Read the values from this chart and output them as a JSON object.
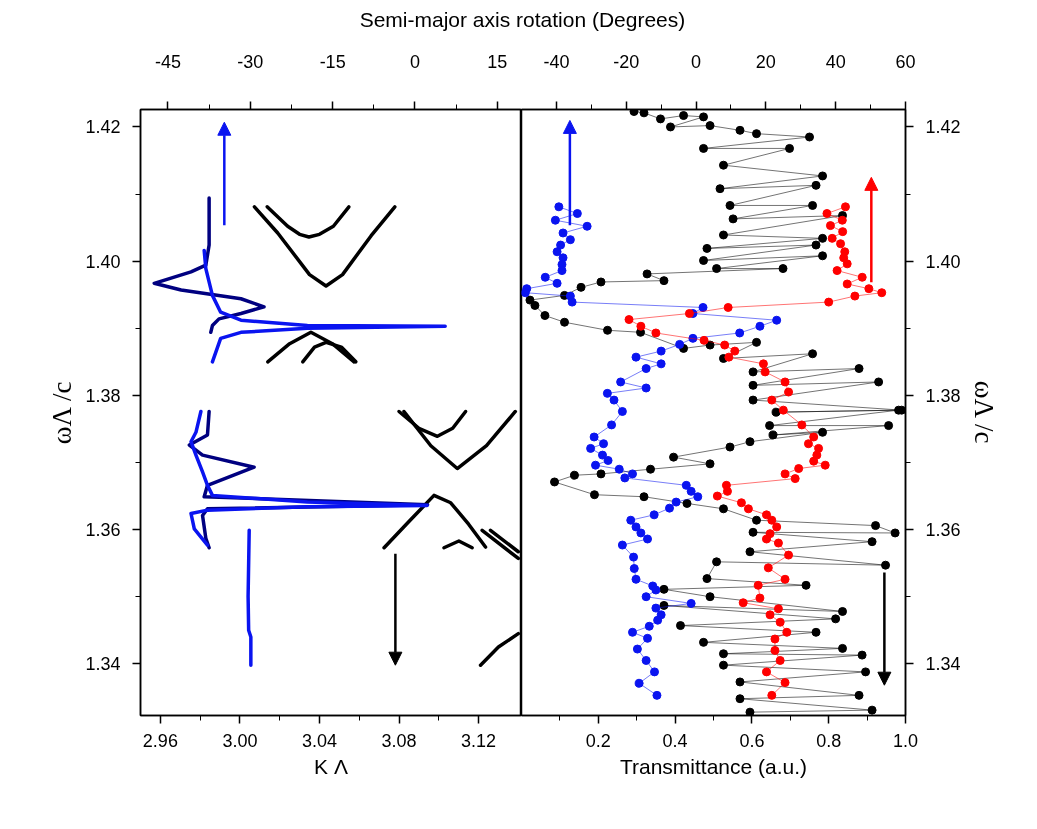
{
  "chart_data": [
    {
      "type": "line",
      "xlabel": "K Λ",
      "ylabel": "ωΛ /c",
      "x2label": "Semi-major axis rotation (Degrees)",
      "xlim": [
        2.95,
        3.1416
      ],
      "xticks": [
        2.96,
        {
          "value": 2.98,
          "label": null
        },
        {
          "value": 3.0,
          "label": "3.00"
        },
        {
          "value": 3.02,
          "label": null
        },
        3.04,
        {
          "value": 3.06,
          "label": null
        },
        3.08,
        {
          "value": 3.1,
          "label": null
        },
        3.12
      ],
      "x2lim": [
        -50,
        19.4
      ],
      "x2ticks": [
        -45,
        {
          "value": -37.5,
          "label": null
        },
        -30,
        {
          "value": -22.5,
          "label": null
        },
        -15,
        {
          "value": -7.5,
          "label": null
        },
        0,
        {
          "value": 7.5,
          "label": null
        },
        15
      ],
      "ylim": [
        1.3323,
        1.4226
      ],
      "yticks": [
        1.34,
        {
          "value": 1.35,
          "label": null
        },
        1.36,
        {
          "value": 1.37,
          "label": null
        },
        1.38,
        {
          "value": 1.39,
          "label": null
        },
        {
          "value": 1.4,
          "label": "1.40"
        },
        {
          "value": 1.41,
          "label": null
        },
        1.42
      ],
      "grid": false,
      "marker": "none",
      "series": [
        {
          "color": "#000000",
          "x": [
            3.0137,
            3.024,
            3.03,
            3.0347,
            3.04,
            3.047,
            3.0548
          ],
          "values": [
            1.4081,
            1.4052,
            1.404,
            1.4036,
            1.404,
            1.4052,
            1.4081
          ]
        },
        {
          "color": "#000000",
          "x": [
            3.0073,
            3.019,
            3.035,
            3.0433,
            3.0516,
            3.066,
            3.0779
          ],
          "values": [
            1.4081,
            1.4042,
            1.398,
            1.3963,
            1.398,
            1.4038,
            1.4081
          ]
        },
        {
          "color": "#000000",
          "x": [
            3.014,
            3.025,
            3.0357,
            3.0465,
            3.0574
          ],
          "values": [
            1.385,
            1.3877,
            1.3894,
            1.3877,
            1.385
          ]
        },
        {
          "color": "#000000",
          "x": [
            3.0316,
            3.0375,
            3.0433,
            3.051,
            3.0583
          ],
          "values": [
            1.385,
            1.3872,
            1.3879,
            1.3872,
            1.385
          ]
        },
        {
          "color": "#000000",
          "x": [
            3.08,
            3.09,
            3.0993,
            3.107,
            3.1135
          ],
          "values": [
            1.3776,
            1.3751,
            1.3739,
            1.3751,
            1.3776
          ]
        },
        {
          "color": "#000000",
          "x": [
            3.0825,
            3.096,
            3.1093,
            3.124,
            3.1385
          ],
          "values": [
            1.3776,
            1.3725,
            1.3691,
            1.3725,
            1.3776
          ]
        },
        {
          "color": "#000000",
          "x": [
            3.0725,
            3.085,
            3.0976,
            3.106,
            3.115,
            3.1235
          ],
          "values": [
            1.3573,
            1.3612,
            1.3651,
            1.364,
            1.3608,
            1.3574
          ]
        },
        {
          "color": "#000000",
          "x": [
            3.1026,
            3.1101,
            3.1168
          ],
          "values": [
            1.3573,
            1.3583,
            1.3573
          ]
        },
        {
          "color": "#000000",
          "x": [
            3.1218,
            3.14
          ],
          "values": [
            1.3599,
            1.3557
          ]
        },
        {
          "color": "#000000",
          "x": [
            3.126,
            3.14
          ],
          "values": [
            1.3599,
            1.3567
          ]
        },
        {
          "color": "#000000",
          "x": [
            3.121,
            3.13,
            3.14
          ],
          "values": [
            1.3398,
            1.3425,
            1.3445
          ]
        },
        {
          "color": "#000080",
          "axis": "x2",
          "x": [
            -37.5,
            -37.5,
            -38.1,
            -40.8,
            -47.5,
            -42.6,
            -31.7,
            -27.5,
            -31.7,
            -35.7,
            -36.9,
            -37.2
          ],
          "values": [
            1.4094,
            1.4024,
            1.3994,
            1.3984,
            1.3967,
            1.3957,
            1.3944,
            1.3932,
            1.3922,
            1.3914,
            1.3904,
            1.3894
          ]
        },
        {
          "color": "#0a14f0",
          "axis": "x2",
          "x": [
            -38.4,
            -38.1,
            -36.9,
            -35.4,
            -31.7,
            -19.6,
            5.5,
            -19.6,
            -31.7,
            -35.4,
            -36.9
          ],
          "values": [
            1.4016,
            1.3989,
            1.3949,
            1.3924,
            1.3912,
            1.3904,
            1.3903,
            1.39,
            1.3894,
            1.3885,
            1.385
          ]
        },
        {
          "color": "#000080",
          "axis": "x2",
          "x": [
            -37.5,
            -37.8,
            -41.1,
            -38.7,
            -29.3,
            -37.8,
            -38.4,
            2.3,
            -37.8,
            -38.7,
            -38.1,
            -37.5
          ],
          "values": [
            1.3776,
            1.3741,
            1.3726,
            1.3711,
            1.3693,
            1.3666,
            1.3649,
            1.3637,
            1.3631,
            1.3621,
            1.3587,
            1.3573
          ]
        },
        {
          "color": "#0a14f0",
          "axis": "x2",
          "x": [
            -39,
            -39.9,
            -40.8,
            -39.9,
            -38.7,
            -37.8,
            -36.9,
            -19.6,
            2.2,
            -19.6,
            -37.8,
            -40.8,
            -40.2,
            -37.8
          ],
          "values": [
            1.3776,
            1.3745,
            1.3731,
            1.3711,
            1.3686,
            1.3666,
            1.3651,
            1.3641,
            1.3636,
            1.3634,
            1.3629,
            1.3624,
            1.3601,
            1.3577
          ]
        },
        {
          "color": "#0a14f0",
          "axis": "x2",
          "x": [
            -30.2,
            -30.4,
            -30.3,
            -29.9,
            -29.9
          ],
          "values": [
            1.3599,
            1.35,
            1.345,
            1.344,
            1.3398
          ]
        }
      ]
    },
    {
      "type": "line",
      "xlabel": "Transmittance (a.u.)",
      "ylabel": "ωΛ /c",
      "xlim": [
        0,
        1.0
      ],
      "xticks": [
        {
          "value": 0.1,
          "label": null
        },
        0.2,
        {
          "value": 0.3,
          "label": null
        },
        0.4,
        {
          "value": 0.5,
          "label": null
        },
        0.6,
        {
          "value": 0.7,
          "label": null
        },
        0.8,
        {
          "value": 0.9,
          "label": null
        },
        {
          "value": 1.0,
          "label": "1.0"
        }
      ],
      "x2lim": [
        -50,
        60
      ],
      "x2ticks": [
        -40,
        {
          "value": -30,
          "label": null
        },
        -20,
        {
          "value": -10,
          "label": null
        },
        0,
        {
          "value": 10,
          "label": null
        },
        20,
        {
          "value": 30,
          "label": null
        },
        40,
        {
          "value": 50,
          "label": null
        },
        60
      ],
      "ylim": [
        1.3323,
        1.4226
      ],
      "yticks": [
        1.34,
        {
          "value": 1.35,
          "label": null
        },
        1.36,
        {
          "value": 1.37,
          "label": null
        },
        1.38,
        {
          "value": 1.39,
          "label": null
        },
        {
          "value": 1.4,
          "label": "1.40"
        },
        {
          "value": 1.41,
          "label": null
        },
        1.42
      ],
      "grid": false,
      "marker": "circle",
      "series": [
        {
          "color": "#000000",
          "x": [
            0.293,
            0.319,
            0.362,
            0.422,
            0.474,
            0.388,
            0.491,
            0.569,
            0.612,
            0.75,
            0.474,
            0.698,
            0.526,
            0.784,
            0.517,
            0.767,
            0.543,
            0.758,
            0.551,
            0.836,
            0.526,
            0.784,
            0.483,
            0.767,
            0.474,
            0.784,
            0.508,
            0.681,
            0.327,
            0.371,
            0.207,
            0.155,
            0.112,
            0.022,
            0.035,
            0.061,
            0.112,
            0.224,
            0.31,
            0.422,
            0.491,
            0.612,
            0.526,
            0.758,
            0.603,
            0.879,
            0.603,
            0.93,
            0.603,
            0.99,
            0.663,
            0.982,
            0.646,
            0.956,
            0.655,
            0.784,
            0.595,
            0.543,
            0.396,
            0.491,
            0.336,
            0.207,
            0.138,
            0.086,
            0.19,
            0.319,
            0.431,
            0.526,
            0.612,
            0.922,
            0.973,
            0.603,
            0.913,
            0.595,
            0.948,
            0.508,
            0.483,
            0.741,
            0.371,
            0.491,
            0.836,
            0.371,
            0.818,
            0.414,
            0.767,
            0.474,
            0.836,
            0.526,
            0.887,
            0.526,
            0.896,
            0.569,
            0.879,
            0.569,
            0.913,
            0.595
          ],
          "values": [
            1.4223,
            1.4221,
            1.4212,
            1.4217,
            1.4215,
            1.42,
            1.4202,
            1.4195,
            1.419,
            1.4185,
            1.4168,
            1.4168,
            1.4143,
            1.4127,
            1.4108,
            1.4113,
            1.4083,
            1.4083,
            1.4063,
            1.4068,
            1.4039,
            1.4034,
            1.4019,
            1.4024,
            1.4001,
            1.4008,
            1.3989,
            1.3989,
            1.3981,
            1.3971,
            1.3969,
            1.3961,
            1.3949,
            1.3942,
            1.3934,
            1.3919,
            1.3909,
            1.3897,
            1.3894,
            1.387,
            1.3875,
            1.3879,
            1.3855,
            1.3862,
            1.3835,
            1.384,
            1.3815,
            1.382,
            1.3793,
            1.3778,
            1.3775,
            1.3778,
            1.3755,
            1.3755,
            1.3741,
            1.3745,
            1.3731,
            1.3723,
            1.3708,
            1.3698,
            1.369,
            1.3683,
            1.3681,
            1.3671,
            1.3652,
            1.3649,
            1.3639,
            1.3631,
            1.3614,
            1.3606,
            1.3595,
            1.3596,
            1.3582,
            1.3567,
            1.3547,
            1.3552,
            1.3527,
            1.3517,
            1.3511,
            1.35,
            1.3478,
            1.3487,
            1.3467,
            1.3457,
            1.3447,
            1.3432,
            1.3423,
            1.3415,
            1.3413,
            1.3398,
            1.3388,
            1.3373,
            1.3353,
            1.3348,
            1.3331,
            1.3328
          ]
        },
        {
          "color": "#0a14f0",
          "axis": "x2",
          "x": [
            -39.3,
            -34,
            -40.3,
            -31.2,
            -38.1,
            -36,
            -38.8,
            -39.8,
            -38.1,
            -38.4,
            -38.4,
            -43.2,
            -39.8,
            -48.5,
            -48.9,
            -36,
            -35.5,
            2,
            -0.9,
            23.1,
            18.3,
            12.5,
            -0.9,
            -4.7,
            -10,
            -17.2,
            -10,
            -14.3,
            -21.6,
            -14.3,
            -25.4,
            -23.5,
            -21.1,
            -24.2,
            -29.2,
            -26.5,
            -30.2,
            -26.8,
            -25.2,
            -28.8,
            -22,
            -18.2,
            -20.4,
            -2.8,
            -1.4,
            0.5,
            -5.7,
            -7.6,
            -12,
            -18.7,
            -17.2,
            -15.8,
            -13.9,
            -21.1,
            -17.9,
            -17.7,
            -17.2,
            -12.4,
            -11.5,
            -14.3,
            -1.4,
            -11.5,
            -10,
            -11,
            -13.4,
            -18.2,
            -13.9,
            -16.8,
            -14.3,
            -11.9,
            -16.3,
            -11.2
          ],
          "values": [
            1.4081,
            1.4071,
            1.4061,
            1.4052,
            1.4042,
            1.4032,
            1.4024,
            1.4014,
            1.4005,
            1.3995,
            1.3986,
            1.3976,
            1.3967,
            1.3959,
            1.3953,
            1.3948,
            1.3939,
            1.3931,
            1.3922,
            1.3912,
            1.3903,
            1.3893,
            1.3885,
            1.3876,
            1.3866,
            1.3857,
            1.3847,
            1.384,
            1.382,
            1.3811,
            1.3803,
            1.3793,
            1.3776,
            1.3756,
            1.3738,
            1.3728,
            1.3721,
            1.3711,
            1.3703,
            1.3696,
            1.369,
            1.3683,
            1.3677,
            1.3666,
            1.3657,
            1.3649,
            1.3641,
            1.3632,
            1.3622,
            1.3614,
            1.3604,
            1.3595,
            1.3586,
            1.3577,
            1.3559,
            1.3542,
            1.3526,
            1.3516,
            1.351,
            1.35,
            1.349,
            1.3483,
            1.3473,
            1.3465,
            1.3456,
            1.3447,
            1.3438,
            1.3422,
            1.3405,
            1.3388,
            1.3371,
            1.3353
          ]
        },
        {
          "color": "#ff0000",
          "axis": "x2",
          "x": [
            42.8,
            37.5,
            41.9,
            38.5,
            42,
            39,
            41.4,
            42.6,
            42.3,
            43.3,
            40.4,
            47.6,
            43.3,
            49.5,
            53.2,
            45.5,
            38,
            9.2,
            -1.9,
            -19.2,
            -15.8,
            -11.5,
            2.3,
            8.2,
            11.1,
            9.4,
            19.3,
            19.8,
            25.5,
            26.5,
            21.7,
            25,
            30.3,
            33.7,
            32.2,
            35.1,
            34.6,
            33.7,
            37,
            29.4,
            25.5,
            28.4,
            8.7,
            9,
            6.1,
            13,
            15,
            20.2,
            21.7,
            23.1,
            21.2,
            20.2,
            23.6,
            26.5,
            20.7,
            25.5,
            17.8,
            18.3,
            13.5,
            23.6,
            21.2,
            24.1,
            26,
            22.6,
            22.6,
            24.1,
            20.2,
            25.5,
            21.7
          ],
          "values": [
            1.4081,
            1.4071,
            1.4061,
            1.4053,
            1.4044,
            1.4034,
            1.4026,
            1.4014,
            1.4005,
            1.3996,
            1.3986,
            1.3976,
            1.3966,
            1.3959,
            1.3953,
            1.3948,
            1.3939,
            1.3931,
            1.3922,
            1.3913,
            1.3903,
            1.3893,
            1.3882,
            1.3875,
            1.3866,
            1.3857,
            1.3847,
            1.3835,
            1.382,
            1.3805,
            1.3793,
            1.3778,
            1.3756,
            1.3738,
            1.3728,
            1.3721,
            1.3711,
            1.3702,
            1.3696,
            1.3691,
            1.3683,
            1.3676,
            1.3666,
            1.3657,
            1.365,
            1.364,
            1.3631,
            1.3622,
            1.3614,
            1.3604,
            1.3594,
            1.3586,
            1.358,
            1.3562,
            1.3543,
            1.3526,
            1.3517,
            1.3498,
            1.3491,
            1.3482,
            1.3473,
            1.3462,
            1.3447,
            1.3437,
            1.342,
            1.3405,
            1.3388,
            1.3372,
            1.3353
          ]
        }
      ]
    }
  ]
}
